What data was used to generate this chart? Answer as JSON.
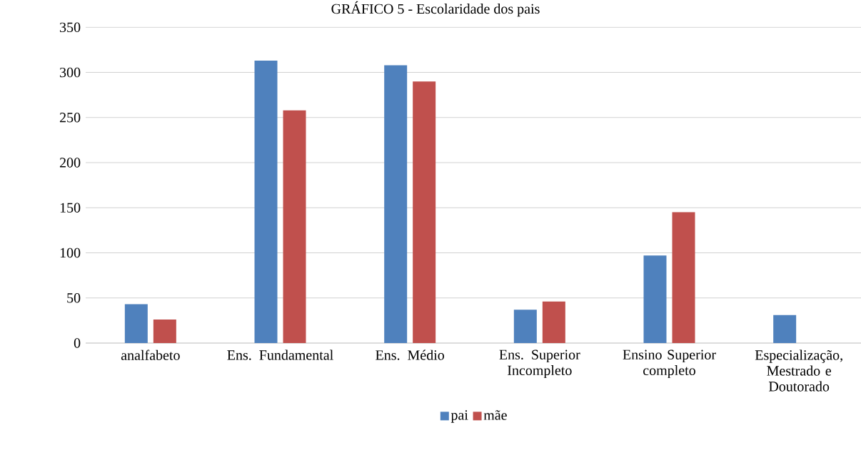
{
  "chart_data": {
    "type": "bar",
    "title": "GRÁFICO 5 - Escolaridade dos pais",
    "categories": [
      "analfabeto",
      "Ens. Fundamental",
      "Ens. Médio",
      "Ens. Superior Incompleto",
      "Ensino Superior completo",
      "Especialização, Mestrado e Doutorado"
    ],
    "series": [
      {
        "name": "pai",
        "color": "#4f81bd",
        "values": [
          43,
          313,
          308,
          37,
          97,
          31
        ]
      },
      {
        "name": "mãe",
        "color": "#c0504d",
        "values": [
          26,
          258,
          290,
          46,
          145,
          null
        ]
      }
    ],
    "ylim": [
      0,
      350
    ],
    "yticks": [
      0,
      50,
      100,
      150,
      200,
      250,
      300,
      350
    ],
    "grid": "y",
    "legend": "bottom"
  }
}
